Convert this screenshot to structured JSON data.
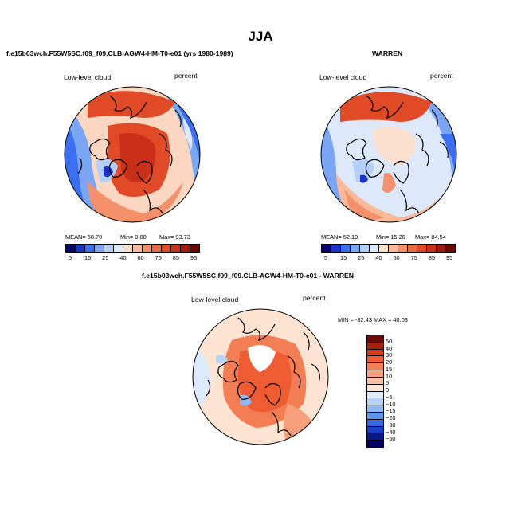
{
  "title": "JJA",
  "panel_left": {
    "subtitle": "f.e15b03wch.F55W5SC.f09_f09.CLB-AGW4-HM-T0-e01 (yrs 1980-1989)",
    "variable": "Low-level cloud",
    "units": "percent",
    "mean_label": "MEAN=",
    "mean": "58.70",
    "min_label": "Min=",
    "min": "0.00",
    "max_label": "Max=",
    "max": "93.73"
  },
  "panel_right": {
    "subtitle": "WARREN",
    "variable": "Low-level cloud",
    "units": "percent",
    "mean_label": "MEAN=",
    "mean": "52.19",
    "min_label": "Min=",
    "min": "15.20",
    "max_label": "Max=",
    "max": "84.54"
  },
  "panel_diff": {
    "subtitle": "f.e15b03wch.F55W5SC.f09_f09.CLB-AGW4-HM-T0-e01 - WARREN",
    "variable": "Low-level cloud",
    "units": "percent",
    "minmax": "MIN = -32.43 MAX =  40.03"
  },
  "abs_colorbar": {
    "ticks": [
      "5",
      "15",
      "25",
      "40",
      "60",
      "75",
      "85",
      "95"
    ],
    "colors": [
      "#08006b",
      "#1c34c8",
      "#3b6ef0",
      "#7aa6f5",
      "#b4d0fa",
      "#dde9fb",
      "#fbe0cf",
      "#f9b99a",
      "#f4916b",
      "#ec6a45",
      "#e04a26",
      "#c8301a",
      "#9c1a0e",
      "#6e0a05"
    ]
  },
  "diff_colorbar": {
    "ticks": [
      "50",
      "40",
      "30",
      "20",
      "15",
      "10",
      "5",
      "0",
      "−5",
      "−10",
      "−15",
      "−20",
      "−30",
      "−40",
      "−50"
    ],
    "colors": [
      "#6e0a05",
      "#a8200e",
      "#d83a1c",
      "#ef5b32",
      "#f47e54",
      "#f7a07b",
      "#fac2a4",
      "#fde3d2",
      "#ddeafc",
      "#b7d3fa",
      "#8fb8f6",
      "#5f93f0",
      "#3968e6",
      "#1c3cc8",
      "#081888",
      "#04006a"
    ]
  }
}
